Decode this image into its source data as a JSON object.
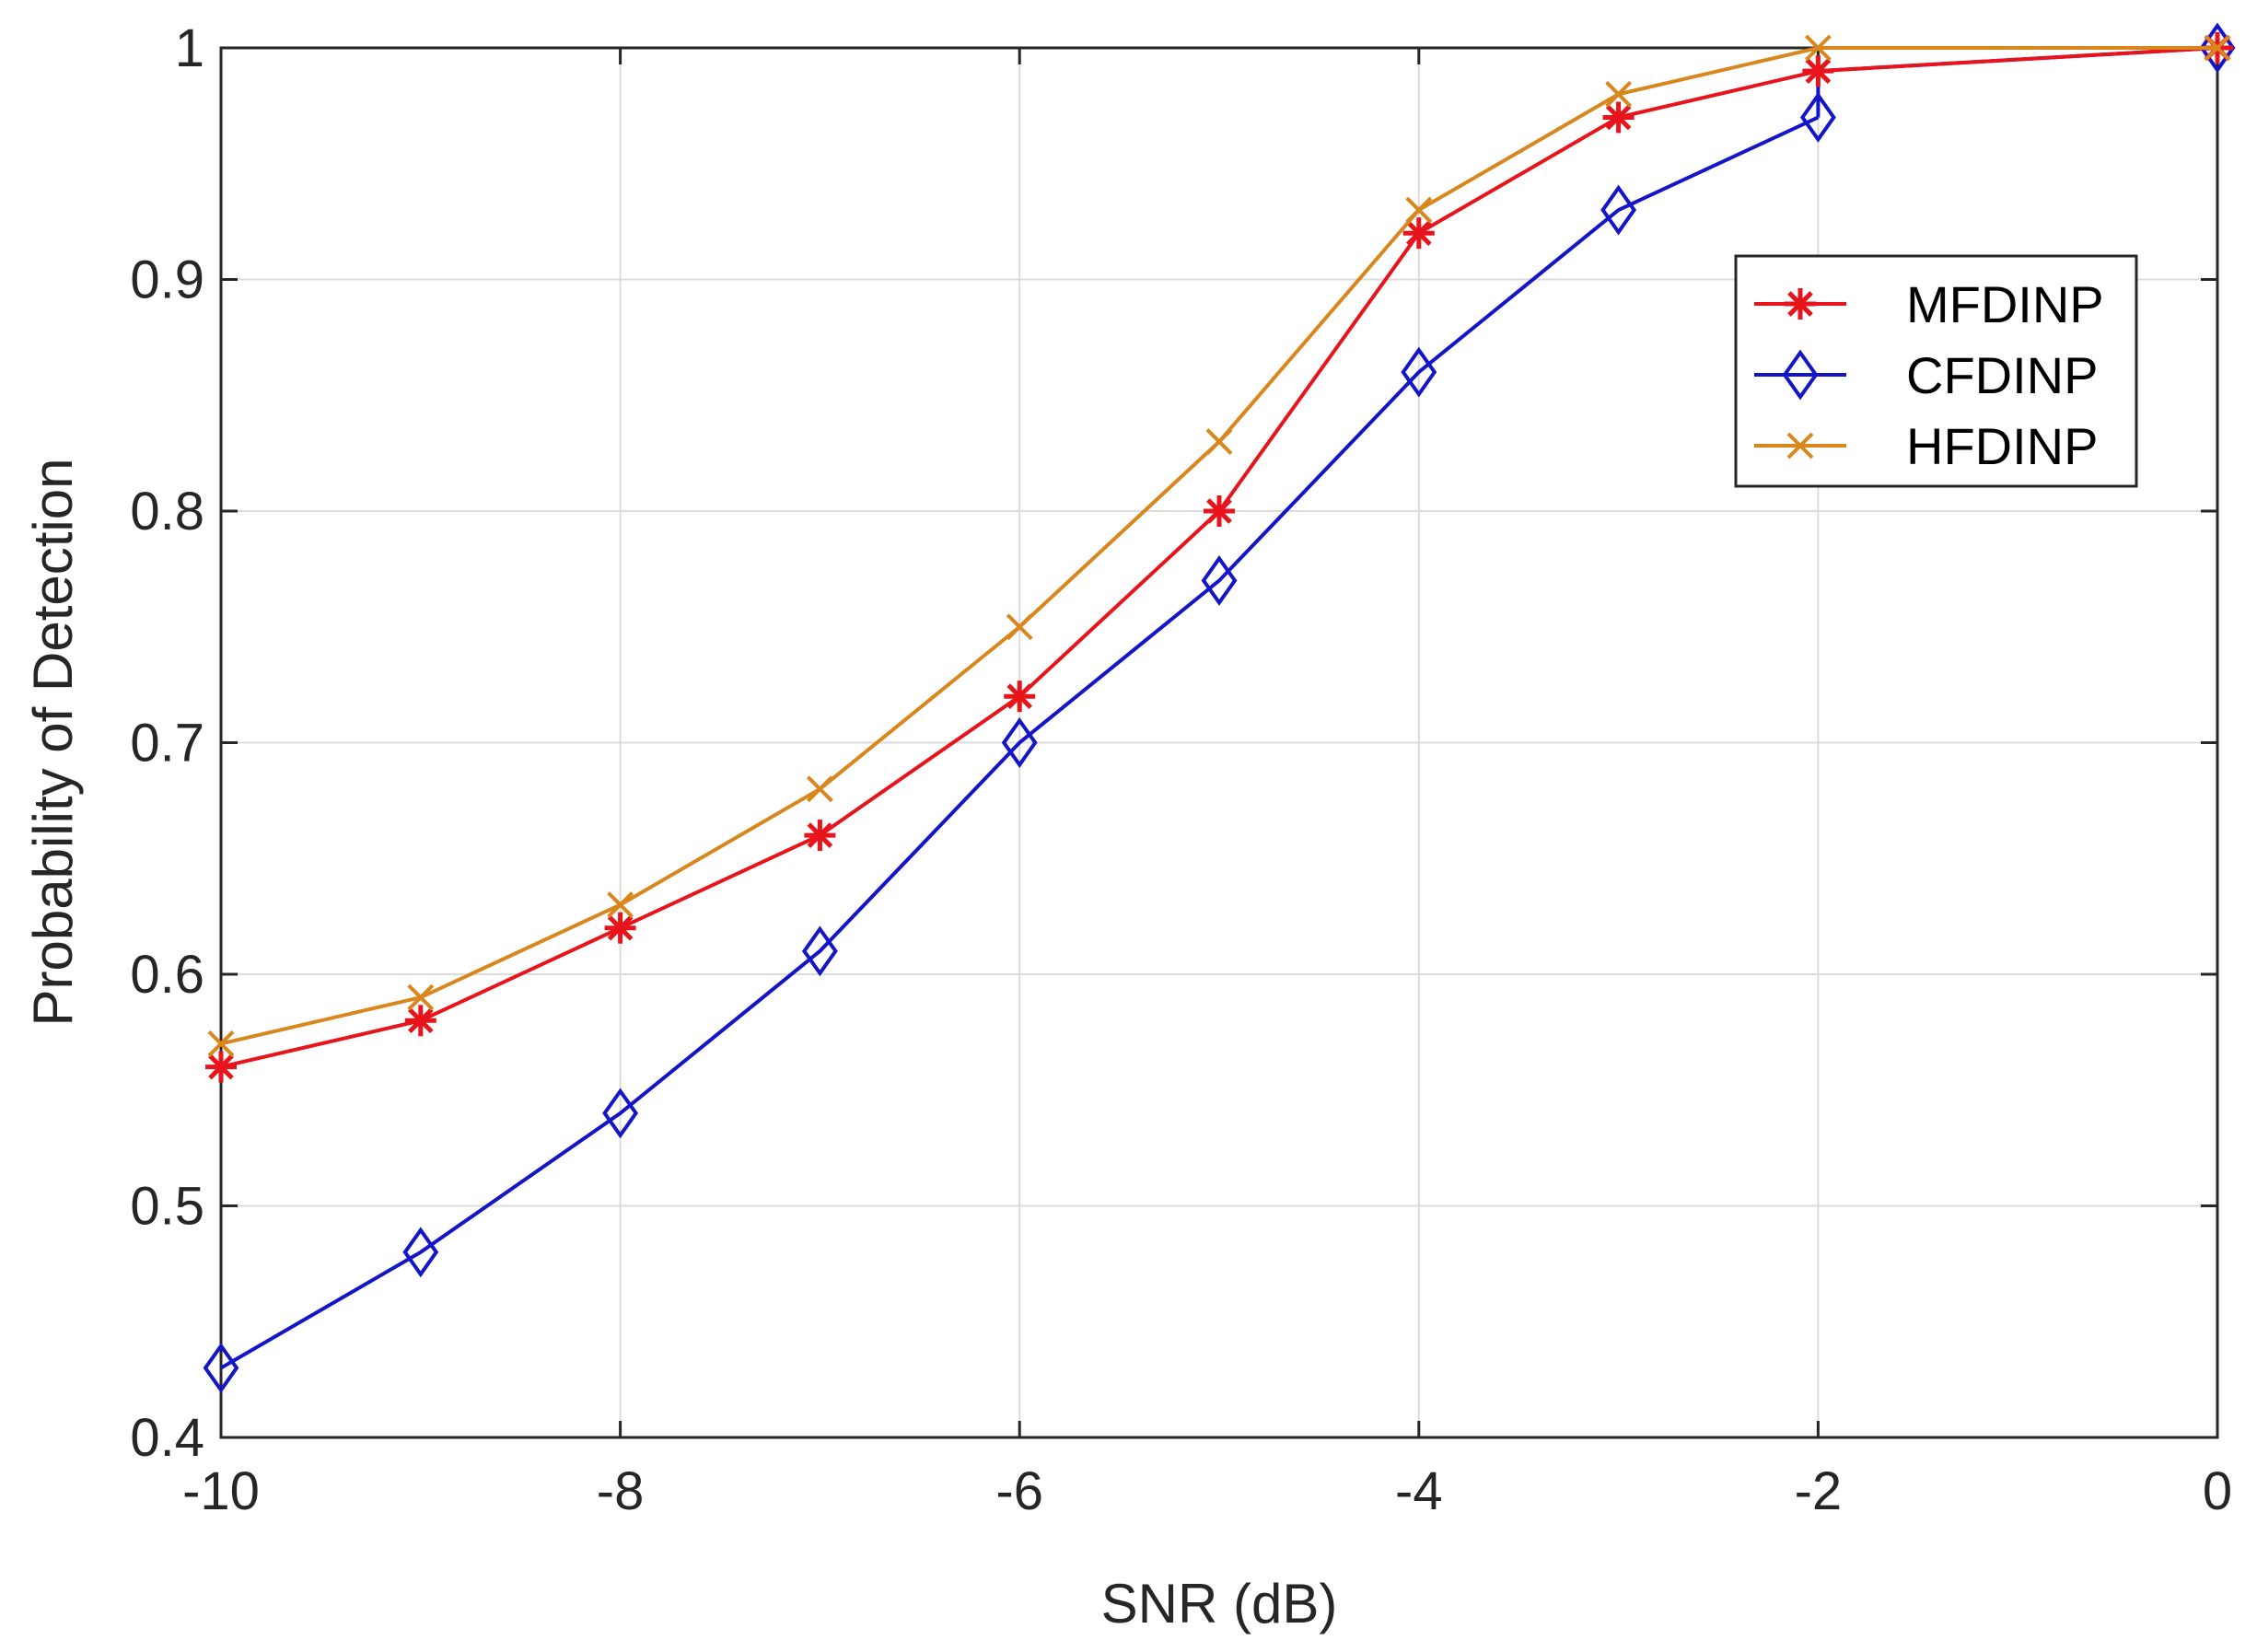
{
  "chart_data": {
    "type": "line",
    "title": "",
    "xlabel": "SNR (dB)",
    "ylabel": "Probability of Detection",
    "xlim": [
      -10,
      0
    ],
    "ylim": [
      0.4,
      1
    ],
    "grid": true,
    "legend_position": "top-right",
    "x": [
      -10,
      -9,
      -8,
      -7,
      -6,
      -5,
      -4,
      -3,
      -2,
      0
    ],
    "xticks": [
      -10,
      -8,
      -6,
      -4,
      -2,
      0
    ],
    "xtick_labels": [
      "-10",
      "-8",
      "-6",
      "-4",
      "-2",
      "0"
    ],
    "yticks": [
      0.4,
      0.5,
      0.6,
      0.7,
      0.8,
      0.9,
      1
    ],
    "ytick_labels": [
      "0.4",
      "0.5",
      "0.6",
      "0.7",
      "0.8",
      "0.9",
      "1"
    ],
    "series": [
      {
        "name": "MFDINP",
        "color": "#e8141b",
        "marker": "asterisk",
        "values": [
          0.56,
          0.58,
          0.62,
          0.66,
          0.72,
          0.8,
          0.92,
          0.97,
          0.99,
          1.0
        ]
      },
      {
        "name": "CFDINP",
        "color": "#1414c8",
        "marker": "diamond",
        "values": [
          0.43,
          0.48,
          0.54,
          0.61,
          0.7,
          0.77,
          0.86,
          0.93,
          0.97,
          1.0
        ],
        "extra_segment": {
          "x": [
            -2,
            -2,
            0
          ],
          "values": [
            0.97,
            0.99,
            1.0
          ]
        }
      },
      {
        "name": "HFDINP",
        "color": "#d9861c",
        "marker": "x",
        "values": [
          0.57,
          0.59,
          0.63,
          0.68,
          0.75,
          0.83,
          0.93,
          0.98,
          1.0,
          1.0
        ]
      }
    ]
  }
}
